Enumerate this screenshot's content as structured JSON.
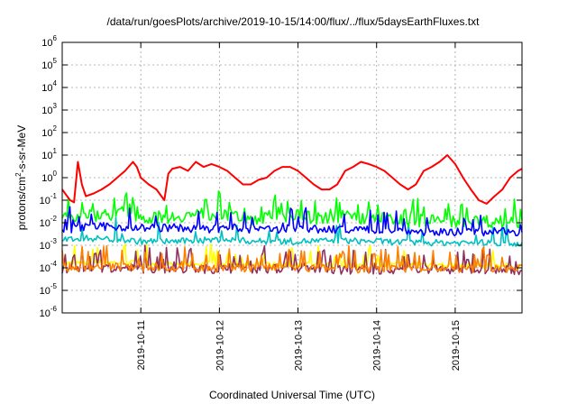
{
  "chart_data": {
    "type": "line",
    "title": "/data/run/goesPlots/archive/2019-10-15/14:00/flux/../flux/5daysEarthFluxes.txt",
    "xlabel": "Coordinated Universal Time (UTC)",
    "ylabel": {
      "base": "protons/cm",
      "exp": "2",
      "rest": "-s-sr-MeV"
    },
    "yscale": "log",
    "ylim": [
      1e-06,
      1000000.0
    ],
    "xlim": [
      0,
      5.85
    ],
    "grid": true,
    "yticks": [
      {
        "value": 1e-06,
        "base": "10",
        "exp": "-6"
      },
      {
        "value": 1e-05,
        "base": "10",
        "exp": "-5"
      },
      {
        "value": 0.0001,
        "base": "10",
        "exp": "-4"
      },
      {
        "value": 0.001,
        "base": "10",
        "exp": "-3"
      },
      {
        "value": 0.01,
        "base": "10",
        "exp": "-2"
      },
      {
        "value": 0.1,
        "base": "10",
        "exp": "-1"
      },
      {
        "value": 1,
        "base": "10",
        "exp": "0"
      },
      {
        "value": 10.0,
        "base": "10",
        "exp": "1"
      },
      {
        "value": 100.0,
        "base": "10",
        "exp": "2"
      },
      {
        "value": 1000.0,
        "base": "10",
        "exp": "3"
      },
      {
        "value": 10000.0,
        "base": "10",
        "exp": "4"
      },
      {
        "value": 100000.0,
        "base": "10",
        "exp": "5"
      },
      {
        "value": 1000000.0,
        "base": "10",
        "exp": "6"
      }
    ],
    "xticks": [
      {
        "value": 1,
        "label": "2019-10-11"
      },
      {
        "value": 2,
        "label": "2019-10-12"
      },
      {
        "value": 3,
        "label": "2019-10-13"
      },
      {
        "value": 4,
        "label": "2019-10-14"
      },
      {
        "value": 5,
        "label": "2019-10-15"
      }
    ],
    "series": [
      {
        "color": "#ff0000",
        "x": [
          0,
          0.1,
          0.15,
          0.2,
          0.25,
          0.3,
          0.4,
          0.5,
          0.6,
          0.7,
          0.8,
          0.9,
          0.95,
          1.0,
          1.1,
          1.2,
          1.3,
          1.35,
          1.4,
          1.5,
          1.6,
          1.7,
          1.8,
          1.9,
          2.0,
          2.1,
          2.2,
          2.3,
          2.4,
          2.5,
          2.6,
          2.7,
          2.8,
          2.9,
          3.0,
          3.1,
          3.2,
          3.3,
          3.4,
          3.5,
          3.6,
          3.7,
          3.8,
          3.9,
          4.0,
          4.1,
          4.2,
          4.3,
          4.4,
          4.5,
          4.6,
          4.7,
          4.8,
          4.9,
          5.0,
          5.1,
          5.2,
          5.3,
          5.4,
          5.5,
          5.6,
          5.7,
          5.8,
          5.85
        ],
        "y": [
          0.3,
          0.1,
          0.08,
          5,
          0.5,
          0.15,
          0.2,
          0.3,
          0.5,
          1,
          2,
          5,
          3,
          1,
          0.5,
          0.3,
          0.1,
          1.5,
          2.5,
          3,
          2,
          5,
          3,
          4,
          3,
          2,
          1,
          0.5,
          0.5,
          0.8,
          1,
          2,
          3,
          3,
          2,
          1,
          0.5,
          0.3,
          0.3,
          0.5,
          2,
          3,
          5,
          4,
          3,
          2,
          1,
          0.5,
          0.3,
          0.5,
          2,
          3,
          5,
          10,
          4,
          1,
          0.3,
          0.1,
          0.07,
          0.15,
          0.3,
          1,
          2,
          2.5
        ]
      },
      {
        "color": "#00ff00",
        "x": [
          0,
          0.3,
          0.6,
          0.9,
          1.2,
          1.5,
          1.8,
          2.1,
          2.4,
          2.7,
          3.0,
          3.3,
          3.6,
          3.9,
          4.2,
          4.5,
          4.8,
          5.1,
          5.4,
          5.85
        ],
        "y": [
          0.015,
          0.02,
          0.025,
          0.02,
          0.015,
          0.02,
          0.025,
          0.02,
          0.015,
          0.02,
          0.02,
          0.015,
          0.02,
          0.015,
          0.015,
          0.012,
          0.012,
          0.012,
          0.012,
          0.011
        ],
        "noise": 0.28,
        "spikes": 0.16
      },
      {
        "color": "#0000ff",
        "x": [
          0,
          0.3,
          0.6,
          0.9,
          1.2,
          1.5,
          1.8,
          2.1,
          2.4,
          2.7,
          3.0,
          3.3,
          3.6,
          3.9,
          4.2,
          4.5,
          4.8,
          5.1,
          5.4,
          5.85
        ],
        "y": [
          0.005,
          0.006,
          0.007,
          0.006,
          0.006,
          0.006,
          0.005,
          0.006,
          0.005,
          0.005,
          0.006,
          0.005,
          0.005,
          0.005,
          0.005,
          0.004,
          0.004,
          0.004,
          0.004,
          0.004
        ],
        "noise": 0.18,
        "spikes": 0.12
      },
      {
        "color": "#00c0c0",
        "x": [
          0,
          0.5,
          1.0,
          1.5,
          2.0,
          2.5,
          3.0,
          3.5,
          4.0,
          4.5,
          5.0,
          5.5,
          5.85
        ],
        "y": [
          0.002,
          0.002,
          0.0015,
          0.0015,
          0.0018,
          0.0015,
          0.0015,
          0.0016,
          0.0015,
          0.0013,
          0.0013,
          0.0013,
          0.0012
        ],
        "noise": 0.14,
        "spikes": 0.06
      },
      {
        "color": "#ffff00",
        "x": [
          0,
          0.5,
          1.0,
          1.5,
          2.0,
          2.5,
          3.0,
          3.5,
          4.0,
          4.5,
          5.0,
          5.5,
          5.85
        ],
        "y": [
          0.00015,
          0.00018,
          0.00016,
          0.00015,
          0.00015,
          0.00014,
          0.00015,
          0.00013,
          0.00013,
          0.00015,
          0.00013,
          0.00013,
          0.00012
        ],
        "noise": 0.12,
        "spikes": 0.08
      },
      {
        "color": "#ff8000",
        "x": [
          0,
          0.5,
          1.0,
          1.5,
          2.0,
          2.5,
          3.0,
          3.5,
          4.0,
          4.5,
          5.0,
          5.5,
          5.85
        ],
        "y": [
          0.0001,
          0.00012,
          0.0001,
          0.0001,
          0.0001,
          0.0001,
          0.0001,
          9e-05,
          9e-05,
          0.0001,
          9e-05,
          9e-05,
          9e-05
        ],
        "noise": 0.18,
        "spikes": 0.18
      },
      {
        "color": "#903060",
        "x": [
          0,
          0.5,
          1.0,
          1.5,
          2.0,
          2.5,
          3.0,
          3.5,
          4.0,
          4.5,
          5.0,
          5.5,
          5.85
        ],
        "y": [
          9e-05,
          0.0001,
          9e-05,
          9e-05,
          9e-05,
          9e-05,
          9e-05,
          8e-05,
          8e-05,
          9e-05,
          8e-05,
          8e-05,
          8e-05
        ],
        "noise": 0.2,
        "spikes": 0.2
      }
    ]
  }
}
